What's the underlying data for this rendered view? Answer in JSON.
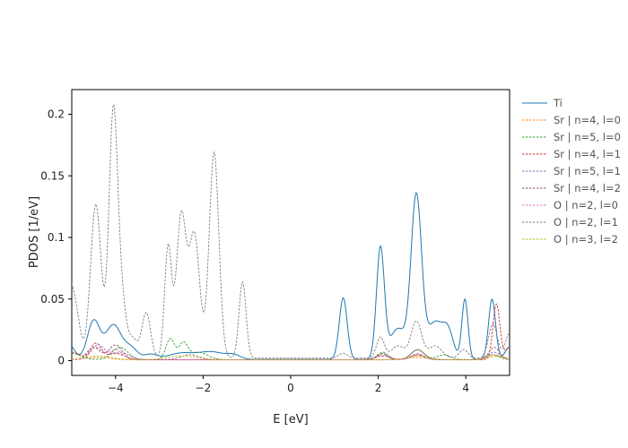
{
  "chart_data": {
    "type": "line",
    "title": "",
    "xlabel": "E [eV]",
    "ylabel": "PDOS [1/eV]",
    "xlim": [
      -5,
      5
    ],
    "ylim": [
      -0.012,
      0.22
    ],
    "xticks": [
      -4,
      -2,
      0,
      2,
      4
    ],
    "xtick_labels": [
      "−4",
      "−2",
      "0",
      "2",
      "4"
    ],
    "yticks": [
      0,
      0.05,
      0.1,
      0.15,
      0.2
    ],
    "ytick_labels": [
      "0",
      "0.05",
      "0.1",
      "0.15",
      "0.2"
    ],
    "grid": false,
    "legend_position": "outside-right",
    "series": [
      {
        "name": "Ti",
        "color": "#1f77b4",
        "style": "solid",
        "baseline": 0.001,
        "peaks": [
          [
            -5.1,
            0.014,
            0.14
          ],
          [
            -4.5,
            0.031,
            0.14
          ],
          [
            -4.05,
            0.028,
            0.18
          ],
          [
            -3.65,
            0.009,
            0.15
          ],
          [
            -3.2,
            0.004,
            0.15
          ],
          [
            -2.5,
            0.005,
            0.3
          ],
          [
            -1.8,
            0.006,
            0.3
          ],
          [
            -1.3,
            0.003,
            0.15
          ],
          [
            1.2,
            0.05,
            0.09
          ],
          [
            2.05,
            0.09,
            0.09
          ],
          [
            2.45,
            0.025,
            0.18
          ],
          [
            2.87,
            0.132,
            0.12
          ],
          [
            3.3,
            0.03,
            0.18
          ],
          [
            3.6,
            0.02,
            0.12
          ],
          [
            3.98,
            0.049,
            0.07
          ],
          [
            4.6,
            0.049,
            0.08
          ],
          [
            5.0,
            0.01,
            0.1
          ]
        ]
      },
      {
        "name": "Sr | n=4, l=0",
        "color": "#ff7f0e",
        "style": "dashed",
        "baseline": 0.0006,
        "peaks": [
          [
            -4.4,
            0.002,
            0.3
          ],
          [
            2.9,
            0.002,
            0.3
          ],
          [
            4.7,
            0.003,
            0.2
          ]
        ]
      },
      {
        "name": "Sr | n=5, l=0",
        "color": "#2ca02c",
        "style": "dashed",
        "baseline": 0.0008,
        "peaks": [
          [
            -5.0,
            0.005,
            0.2
          ],
          [
            -3.9,
            0.01,
            0.18
          ],
          [
            -2.75,
            0.017,
            0.1
          ],
          [
            -2.45,
            0.013,
            0.1
          ],
          [
            -2.1,
            0.006,
            0.2
          ],
          [
            2.1,
            0.006,
            0.12
          ],
          [
            2.9,
            0.008,
            0.15
          ],
          [
            3.5,
            0.004,
            0.15
          ],
          [
            4.6,
            0.004,
            0.15
          ]
        ]
      },
      {
        "name": "Sr | n=4, l=1",
        "color": "#d62728",
        "style": "dashed",
        "baseline": 0.0008,
        "peaks": [
          [
            -5.0,
            0.006,
            0.2
          ],
          [
            -4.45,
            0.013,
            0.12
          ],
          [
            -4.0,
            0.005,
            0.2
          ],
          [
            2.1,
            0.003,
            0.15
          ],
          [
            2.9,
            0.004,
            0.15
          ],
          [
            4.7,
            0.045,
            0.08
          ],
          [
            5.0,
            0.01,
            0.1
          ]
        ]
      },
      {
        "name": "Sr | n=5, l=1",
        "color": "#9467bd",
        "style": "dashed",
        "baseline": 0.0008,
        "peaks": [
          [
            -4.4,
            0.012,
            0.15
          ],
          [
            -3.9,
            0.006,
            0.2
          ],
          [
            2.1,
            0.004,
            0.15
          ],
          [
            2.9,
            0.004,
            0.15
          ],
          [
            4.65,
            0.006,
            0.15
          ]
        ]
      },
      {
        "name": "Sr | n=4, l=2",
        "color": "#8c564b",
        "style": "dashed",
        "baseline": 0.0008,
        "peaks": [
          [
            -4.5,
            0.01,
            0.15
          ],
          [
            -4.0,
            0.012,
            0.15
          ],
          [
            -2.3,
            0.004,
            0.2
          ],
          [
            2.1,
            0.005,
            0.12
          ],
          [
            2.9,
            0.008,
            0.15
          ],
          [
            4.65,
            0.01,
            0.12
          ]
        ]
      },
      {
        "name": "O | n=2, l=0",
        "color": "#e377c2",
        "style": "dashed",
        "baseline": 0.0008,
        "peaks": [
          [
            -4.45,
            0.01,
            0.15
          ],
          [
            -4.0,
            0.008,
            0.15
          ],
          [
            2.9,
            0.005,
            0.15
          ],
          [
            4.65,
            0.004,
            0.15
          ]
        ]
      },
      {
        "name": "O | n=2, l=1",
        "color": "#7f7f7f",
        "style": "dashed",
        "baseline": 0.002,
        "peaks": [
          [
            -5.1,
            0.06,
            0.12
          ],
          [
            -4.9,
            0.03,
            0.1
          ],
          [
            -4.45,
            0.125,
            0.12
          ],
          [
            -4.05,
            0.2,
            0.1
          ],
          [
            -3.85,
            0.04,
            0.1
          ],
          [
            -3.3,
            0.037,
            0.1
          ],
          [
            -2.8,
            0.09,
            0.08
          ],
          [
            -2.5,
            0.115,
            0.11
          ],
          [
            -2.2,
            0.1,
            0.12
          ],
          [
            -1.75,
            0.167,
            0.11
          ],
          [
            -1.1,
            0.062,
            0.08
          ],
          [
            -3.6,
            0.015,
            0.1
          ],
          [
            1.2,
            0.004,
            0.1
          ],
          [
            2.05,
            0.017,
            0.09
          ],
          [
            2.45,
            0.01,
            0.15
          ],
          [
            2.87,
            0.03,
            0.12
          ],
          [
            3.3,
            0.01,
            0.15
          ],
          [
            3.95,
            0.007,
            0.1
          ],
          [
            4.62,
            0.028,
            0.1
          ],
          [
            5.0,
            0.02,
            0.1
          ]
        ]
      },
      {
        "name": "O | n=3, l=2",
        "color": "#bcbd22",
        "style": "dashed",
        "baseline": 0.0008,
        "peaks": [
          [
            -4.4,
            0.003,
            0.3
          ],
          [
            -2.5,
            0.003,
            0.3
          ],
          [
            2.9,
            0.003,
            0.2
          ],
          [
            4.65,
            0.004,
            0.15
          ]
        ]
      }
    ]
  }
}
